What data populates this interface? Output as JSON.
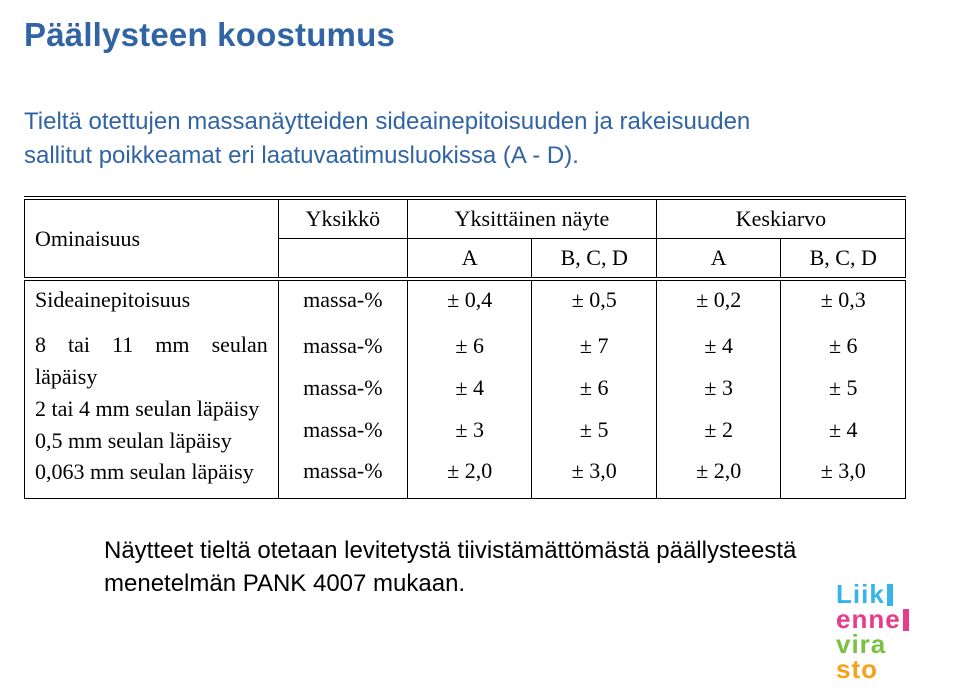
{
  "title": "Päällysteen koostumus",
  "subtitle_line1": "Tieltä otettujen massanäytteiden sideainepitoisuuden ja rakeisuuden",
  "subtitle_line2": "sallitut poikkeamat eri laatuvaatimusluokissa (A - D).",
  "table": {
    "header": {
      "c1": "Ominaisuus",
      "c2": "Yksikkö",
      "c3": "Yksittäinen näyte",
      "c4": "Keskiarvo",
      "sub_a1": "A",
      "sub_b1": "B, C, D",
      "sub_a2": "A",
      "sub_b2": "B, C, D"
    },
    "row_binder": {
      "label": "Sideainepitoisuus",
      "unit": "massa-%",
      "v1": "±  0,4",
      "v2": "±  0,5",
      "v3": "±  0,2",
      "v4": "±  0,3"
    },
    "row_sieves": {
      "labels": [
        "8 tai 11 mm seulan läpäisy",
        "2 tai 4 mm seulan läpäisy",
        "0,5 mm seulan läpäisy",
        "0,063 mm seulan läpäisy"
      ],
      "units": [
        "massa-%",
        "massa-%",
        "massa-%",
        "massa-%"
      ],
      "col1": [
        "±  6",
        "±  4",
        "±  3",
        "±  2,0"
      ],
      "col2": [
        "±  7",
        "±  6",
        "±  5",
        "±  3,0"
      ],
      "col3": [
        "±  4",
        "±  3",
        "±  2",
        "±  2,0"
      ],
      "col4": [
        "±  6",
        "±  5",
        "±  4",
        "±  3,0"
      ]
    }
  },
  "footnote": "Näytteet tieltä otetaan levitetystä tiivistämättömästä päällysteestä menetelmän PANK 4007 mukaan.",
  "logo": {
    "l1": "Liik",
    "l2": "enne",
    "l3": "vira",
    "l4": "sto"
  },
  "colors": {
    "heading_blue": "#3164a5",
    "body_black": "#000000",
    "logo_blue": "#36b6e8",
    "logo_pink": "#e63c8c",
    "logo_green": "#7ac142",
    "logo_orange": "#f6a21b",
    "background": "#ffffff"
  }
}
